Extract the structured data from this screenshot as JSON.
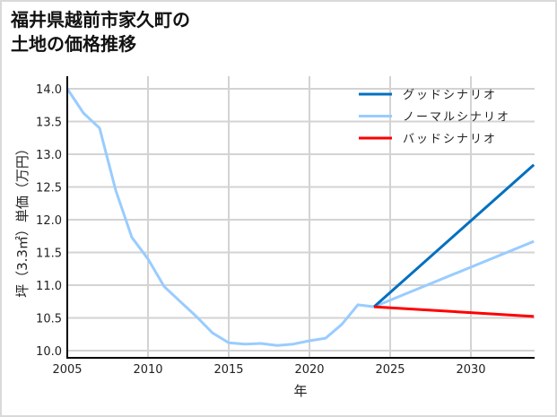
{
  "title_line1": "福井県越前市家久町の",
  "title_line2": "土地の価格推移",
  "chart_data": {
    "type": "line",
    "title": "福井県越前市家久町の土地の価格推移",
    "xlabel": "年",
    "ylabel": "坪（3.3㎡）単価（万円）",
    "xlim": [
      2005,
      2033.9
    ],
    "ylim": [
      9.95,
      14.1
    ],
    "xticks": [
      2005,
      2010,
      2015,
      2020,
      2025,
      2030
    ],
    "yticks": [
      10.0,
      10.5,
      11.0,
      11.5,
      12.0,
      12.5,
      13.0,
      13.5,
      14.0
    ],
    "grid": true,
    "legend_position": "upper right",
    "series": [
      {
        "name": "グッドシナリオ",
        "color": "#0070c0",
        "x": [
          2024,
          2034
        ],
        "y": [
          10.67,
          12.86
        ]
      },
      {
        "name": "ノーマルシナリオ",
        "color": "#99ccff",
        "x": [
          2005,
          2006,
          2007,
          2008,
          2009,
          2010,
          2011,
          2012,
          2013,
          2014,
          2015,
          2016,
          2017,
          2018,
          2019,
          2020,
          2021,
          2022,
          2023,
          2024,
          2034
        ],
        "y": [
          14.0,
          13.63,
          13.4,
          12.45,
          11.73,
          11.4,
          10.98,
          10.75,
          10.52,
          10.27,
          10.12,
          10.1,
          10.11,
          10.08,
          10.1,
          10.15,
          10.19,
          10.4,
          10.7,
          10.67,
          11.68
        ]
      },
      {
        "name": "バッドシナリオ",
        "color": "#ff0000",
        "x": [
          2024,
          2034
        ],
        "y": [
          10.67,
          10.52
        ]
      }
    ]
  }
}
